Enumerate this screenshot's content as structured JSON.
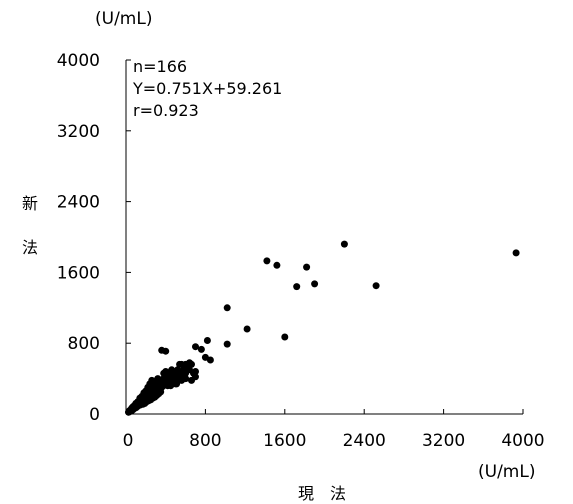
{
  "chart_data": {
    "type": "scatter",
    "xlabel": "現　法",
    "ylabel": "新法",
    "x_unit": "(U/mL)",
    "y_unit": "(U/mL)",
    "xlim": [
      0,
      4000
    ],
    "ylim": [
      0,
      4000
    ],
    "x_ticks": [
      0,
      800,
      1600,
      2400,
      3200,
      4000
    ],
    "y_ticks": [
      0,
      800,
      1600,
      2400,
      3200,
      4000
    ],
    "grid": false,
    "marker_color": "#000000",
    "annotations": [
      "n=166",
      "Y=0.751X+59.261",
      "r=0.923"
    ],
    "points": [
      [
        3930,
        1820
      ],
      [
        2200,
        1920
      ],
      [
        2520,
        1450
      ],
      [
        1420,
        1730
      ],
      [
        1520,
        1680
      ],
      [
        1820,
        1660
      ],
      [
        1900,
        1470
      ],
      [
        1720,
        1440
      ],
      [
        1600,
        870
      ],
      [
        1020,
        1200
      ],
      [
        1220,
        960
      ],
      [
        1020,
        790
      ],
      [
        820,
        830
      ],
      [
        850,
        610
      ],
      [
        700,
        760
      ],
      [
        760,
        730
      ],
      [
        800,
        640
      ],
      [
        640,
        580
      ],
      [
        600,
        560
      ],
      [
        560,
        560
      ],
      [
        540,
        560
      ],
      [
        520,
        500
      ],
      [
        700,
        480
      ],
      [
        680,
        460
      ],
      [
        640,
        500
      ],
      [
        700,
        420
      ],
      [
        660,
        380
      ],
      [
        600,
        460
      ],
      [
        560,
        420
      ],
      [
        520,
        380
      ],
      [
        480,
        420
      ],
      [
        460,
        500
      ],
      [
        440,
        460
      ],
      [
        420,
        440
      ],
      [
        400,
        480
      ],
      [
        380,
        460
      ],
      [
        360,
        720
      ],
      [
        400,
        710
      ],
      [
        500,
        340
      ],
      [
        460,
        380
      ],
      [
        440,
        360
      ],
      [
        420,
        320
      ],
      [
        400,
        340
      ],
      [
        380,
        400
      ],
      [
        360,
        380
      ],
      [
        340,
        360
      ],
      [
        320,
        400
      ],
      [
        320,
        300
      ],
      [
        300,
        340
      ],
      [
        300,
        280
      ],
      [
        280,
        320
      ],
      [
        280,
        260
      ],
      [
        260,
        300
      ],
      [
        260,
        380
      ],
      [
        240,
        340
      ],
      [
        240,
        260
      ],
      [
        240,
        220
      ],
      [
        220,
        300
      ],
      [
        220,
        240
      ],
      [
        220,
        180
      ],
      [
        200,
        260
      ],
      [
        200,
        200
      ],
      [
        200,
        160
      ],
      [
        180,
        240
      ],
      [
        180,
        200
      ],
      [
        180,
        140
      ],
      [
        160,
        200
      ],
      [
        160,
        160
      ],
      [
        160,
        120
      ],
      [
        140,
        180
      ],
      [
        140,
        140
      ],
      [
        140,
        100
      ],
      [
        120,
        140
      ],
      [
        120,
        120
      ],
      [
        120,
        90
      ],
      [
        110,
        110
      ],
      [
        100,
        120
      ],
      [
        100,
        90
      ],
      [
        100,
        70
      ],
      [
        90,
        100
      ],
      [
        90,
        80
      ],
      [
        80,
        90
      ],
      [
        80,
        70
      ],
      [
        80,
        60
      ],
      [
        70,
        80
      ],
      [
        70,
        60
      ],
      [
        70,
        50
      ],
      [
        60,
        70
      ],
      [
        60,
        50
      ],
      [
        60,
        40
      ],
      [
        55,
        60
      ],
      [
        50,
        50
      ],
      [
        50,
        40
      ],
      [
        45,
        45
      ],
      [
        40,
        40
      ],
      [
        40,
        30
      ],
      [
        35,
        35
      ],
      [
        30,
        30
      ],
      [
        300,
        220
      ],
      [
        280,
        200
      ],
      [
        260,
        180
      ],
      [
        340,
        260
      ],
      [
        360,
        300
      ],
      [
        380,
        320
      ],
      [
        420,
        360
      ],
      [
        460,
        340
      ],
      [
        500,
        420
      ],
      [
        540,
        460
      ],
      [
        580,
        500
      ],
      [
        620,
        520
      ],
      [
        660,
        560
      ],
      [
        600,
        400
      ],
      [
        560,
        380
      ],
      [
        520,
        440
      ],
      [
        480,
        460
      ],
      [
        440,
        400
      ],
      [
        400,
        380
      ],
      [
        360,
        340
      ],
      [
        340,
        300
      ],
      [
        320,
        260
      ],
      [
        300,
        240
      ],
      [
        280,
        240
      ],
      [
        260,
        220
      ],
      [
        240,
        200
      ],
      [
        220,
        200
      ],
      [
        200,
        180
      ],
      [
        180,
        160
      ],
      [
        160,
        140
      ],
      [
        150,
        130
      ],
      [
        130,
        120
      ],
      [
        250,
        320
      ],
      [
        270,
        340
      ],
      [
        230,
        280
      ],
      [
        210,
        260
      ],
      [
        190,
        220
      ],
      [
        170,
        180
      ],
      [
        150,
        160
      ],
      [
        130,
        100
      ],
      [
        110,
        80
      ],
      [
        95,
        75
      ],
      [
        85,
        65
      ],
      [
        75,
        55
      ],
      [
        65,
        55
      ],
      [
        55,
        45
      ],
      [
        48,
        38
      ],
      [
        42,
        32
      ],
      [
        38,
        28
      ],
      [
        33,
        27
      ],
      [
        28,
        22
      ],
      [
        25,
        20
      ],
      [
        350,
        250
      ],
      [
        330,
        230
      ],
      [
        310,
        210
      ],
      [
        290,
        190
      ],
      [
        270,
        180
      ],
      [
        250,
        160
      ],
      [
        230,
        150
      ],
      [
        210,
        140
      ],
      [
        190,
        120
      ],
      [
        170,
        110
      ],
      [
        450,
        320
      ],
      [
        470,
        360
      ],
      [
        490,
        400
      ],
      [
        510,
        340
      ],
      [
        530,
        420
      ],
      [
        550,
        440
      ]
    ]
  }
}
